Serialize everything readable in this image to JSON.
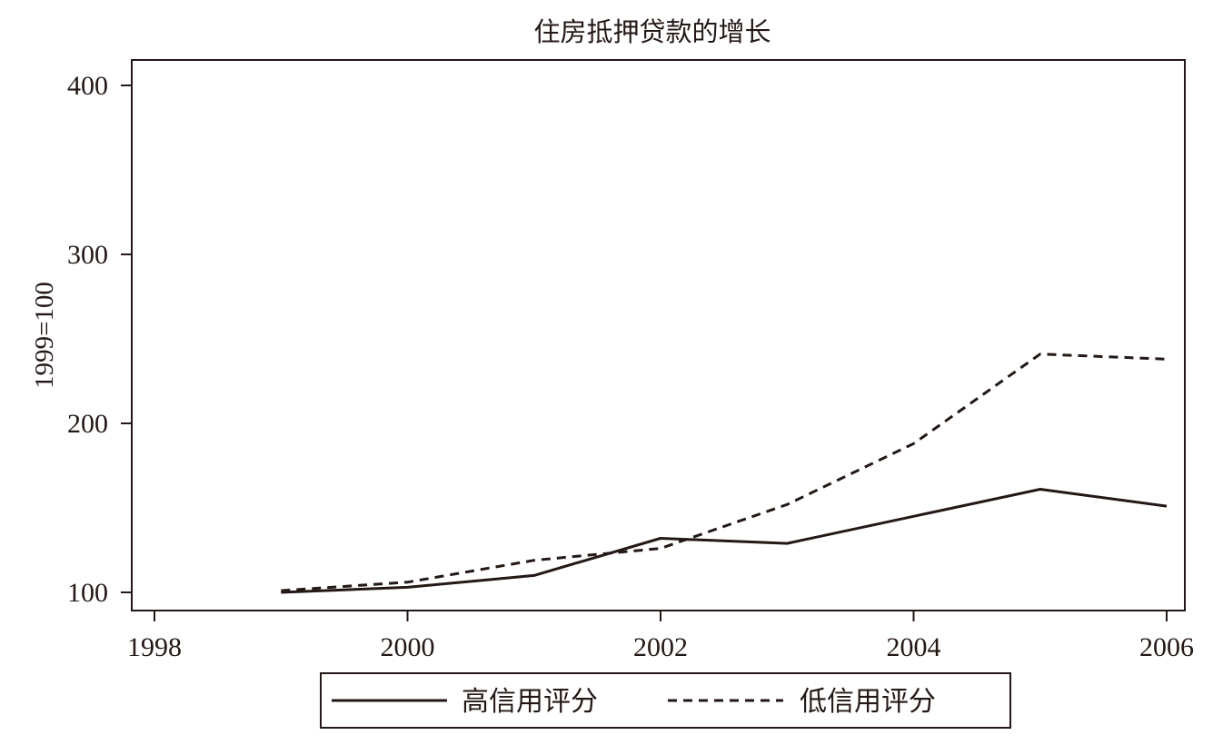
{
  "chart_data": {
    "type": "line",
    "title": "住房抵押贷款的增长",
    "xlabel": "",
    "ylabel": "1999=100",
    "xlim": [
      1998,
      2006
    ],
    "ylim": [
      90,
      415
    ],
    "x_ticks": [
      1998,
      2000,
      2002,
      2004,
      2006
    ],
    "y_ticks": [
      100,
      200,
      300,
      400
    ],
    "grid": false,
    "legend_position": "bottom",
    "series": [
      {
        "name": "高信用评分",
        "style": "solid",
        "color": "#231815",
        "x": [
          1999,
          2000,
          2001,
          2002,
          2003,
          2004,
          2005,
          2006
        ],
        "y": [
          100,
          103,
          110,
          132,
          129,
          145,
          161,
          151
        ]
      },
      {
        "name": "低信用评分",
        "style": "dashed",
        "color": "#231815",
        "x": [
          1999,
          2000,
          2001,
          2002,
          2003,
          2004,
          2005,
          2006
        ],
        "y": [
          101,
          106,
          119,
          126,
          152,
          188,
          241,
          238
        ]
      }
    ]
  }
}
